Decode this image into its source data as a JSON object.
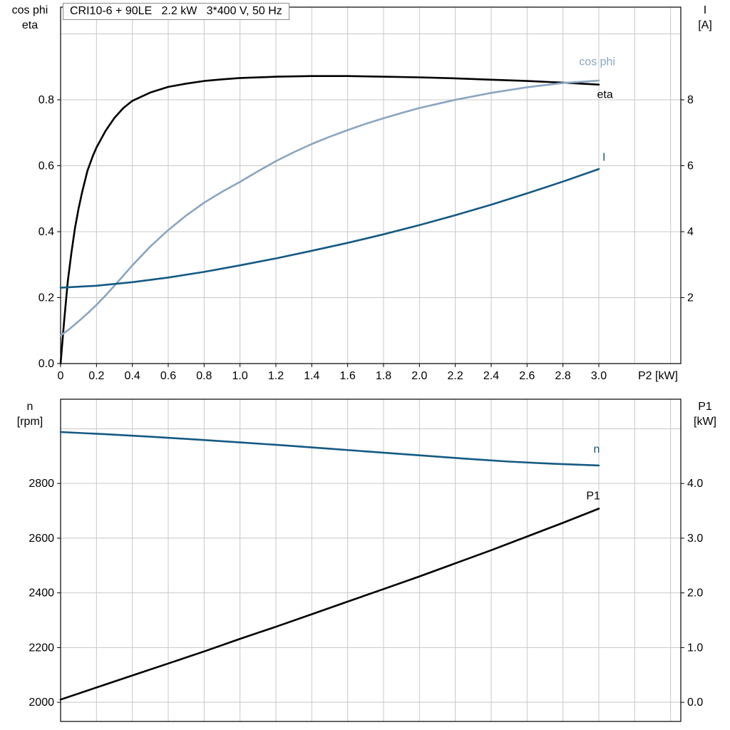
{
  "page": {
    "background": "#ffffff"
  },
  "colors": {
    "black": "#000000",
    "dark_blue": "#145A83",
    "light_blue": "#8AA5C0",
    "grid": "#C8C8C8"
  },
  "title_box": {
    "text": "CRI10-6 + 90LE   2.2 kW   3*400 V, 50 Hz"
  },
  "chart_data": [
    {
      "id": "motor-efficiency-chart",
      "type": "line",
      "title": "CRI10-6 + 90LE   2.2 kW   3*400 V, 50 Hz",
      "x": {
        "min": 0,
        "max": 3.457,
        "label": "P2 [kW]",
        "ticks": [
          0,
          0.2,
          0.4,
          0.6,
          0.8,
          1,
          1.2,
          1.4,
          1.6,
          1.8,
          2,
          2.2,
          2.4,
          2.6,
          2.8,
          3
        ],
        "tick_labels": [
          "0",
          "0.2",
          "0.4",
          "0.6",
          "0.8",
          "1.0",
          "1.2",
          "1.4",
          "1.6",
          "1.8",
          "2.0",
          "2.2",
          "2.4",
          "2.6",
          "2.8",
          "3.0"
        ],
        "grid": [
          0.2,
          0.4,
          0.6,
          0.8,
          1,
          1.2,
          1.4,
          1.6,
          1.8,
          2,
          2.2,
          2.4,
          2.6,
          2.8,
          3,
          3.2,
          3.4
        ]
      },
      "y_left": {
        "min": 0,
        "max": 1.081,
        "title_lines": [
          "cos phi",
          "eta"
        ],
        "ticks": [
          0,
          0.2,
          0.4,
          0.6,
          0.8
        ],
        "tick_labels": [
          "0.0",
          "0.2",
          "0.4",
          "0.6",
          "0.8"
        ],
        "grid": [
          0.2,
          0.4,
          0.6,
          0.8,
          1.0
        ]
      },
      "y_right": {
        "min": 0,
        "max": 10.81,
        "title_lines": [
          "I",
          "[A]"
        ],
        "ticks": [
          2,
          4,
          6,
          8
        ],
        "tick_labels": [
          "2",
          "4",
          "6",
          "8"
        ]
      },
      "series": [
        {
          "name": "eta",
          "axis": "left",
          "color": "#000000",
          "points": [
            [
              0,
              0
            ],
            [
              0.02,
              0.13
            ],
            [
              0.04,
              0.25
            ],
            [
              0.06,
              0.335
            ],
            [
              0.08,
              0.41
            ],
            [
              0.1,
              0.47
            ],
            [
              0.12,
              0.52
            ],
            [
              0.15,
              0.585
            ],
            [
              0.18,
              0.63
            ],
            [
              0.2,
              0.655
            ],
            [
              0.25,
              0.705
            ],
            [
              0.3,
              0.745
            ],
            [
              0.35,
              0.775
            ],
            [
              0.4,
              0.797
            ],
            [
              0.5,
              0.822
            ],
            [
              0.6,
              0.839
            ],
            [
              0.7,
              0.849
            ],
            [
              0.8,
              0.857
            ],
            [
              0.9,
              0.862
            ],
            [
              1,
              0.866
            ],
            [
              1.2,
              0.87
            ],
            [
              1.4,
              0.872
            ],
            [
              1.6,
              0.872
            ],
            [
              1.8,
              0.87
            ],
            [
              2,
              0.868
            ],
            [
              2.2,
              0.865
            ],
            [
              2.4,
              0.861
            ],
            [
              2.6,
              0.857
            ],
            [
              2.8,
              0.852
            ],
            [
              3,
              0.846
            ]
          ]
        },
        {
          "name": "cos-phi",
          "axis": "left",
          "color": "#8AA5C0",
          "points": [
            [
              0,
              0.085
            ],
            [
              0.05,
              0.105
            ],
            [
              0.1,
              0.128
            ],
            [
              0.15,
              0.152
            ],
            [
              0.2,
              0.178
            ],
            [
              0.25,
              0.206
            ],
            [
              0.3,
              0.236
            ],
            [
              0.35,
              0.267
            ],
            [
              0.4,
              0.298
            ],
            [
              0.5,
              0.355
            ],
            [
              0.6,
              0.405
            ],
            [
              0.7,
              0.449
            ],
            [
              0.8,
              0.488
            ],
            [
              0.9,
              0.521
            ],
            [
              1,
              0.551
            ],
            [
              1.1,
              0.583
            ],
            [
              1.2,
              0.614
            ],
            [
              1.3,
              0.641
            ],
            [
              1.4,
              0.666
            ],
            [
              1.5,
              0.688
            ],
            [
              1.6,
              0.708
            ],
            [
              1.7,
              0.727
            ],
            [
              1.8,
              0.744
            ],
            [
              1.9,
              0.76
            ],
            [
              2,
              0.775
            ],
            [
              2.2,
              0.8
            ],
            [
              2.4,
              0.821
            ],
            [
              2.6,
              0.838
            ],
            [
              2.8,
              0.851
            ],
            [
              3,
              0.858
            ]
          ]
        },
        {
          "name": "current-I",
          "axis": "right",
          "color": "#145A83",
          "points": [
            [
              0,
              2.3
            ],
            [
              0.2,
              2.36
            ],
            [
              0.4,
              2.47
            ],
            [
              0.6,
              2.61
            ],
            [
              0.8,
              2.78
            ],
            [
              1,
              2.98
            ],
            [
              1.2,
              3.19
            ],
            [
              1.4,
              3.42
            ],
            [
              1.6,
              3.66
            ],
            [
              1.8,
              3.92
            ],
            [
              2,
              4.2
            ],
            [
              2.2,
              4.5
            ],
            [
              2.4,
              4.82
            ],
            [
              2.6,
              5.16
            ],
            [
              2.8,
              5.52
            ],
            [
              3,
              5.9
            ]
          ]
        }
      ],
      "curve_labels": [
        {
          "name": "cos-phi",
          "text": "cos phi",
          "x": 2.89,
          "y": 0.905,
          "axis": "left",
          "color": "#8AA5C0"
        },
        {
          "name": "eta",
          "text": "eta",
          "x": 2.99,
          "y": 0.805,
          "axis": "left",
          "color": "#000000"
        },
        {
          "name": "current-I",
          "text": "I",
          "x": 3.02,
          "y": 6.15,
          "axis": "right",
          "color": "#145A83"
        }
      ]
    },
    {
      "id": "speed-power-chart",
      "type": "line",
      "title": "",
      "x": {
        "min": 0,
        "max": 3.457,
        "label": "",
        "ticks": [],
        "tick_labels": [],
        "grid": [
          0.2,
          0.4,
          0.6,
          0.8,
          1,
          1.2,
          1.4,
          1.6,
          1.8,
          2,
          2.2,
          2.4,
          2.6,
          2.8,
          3,
          3.2,
          3.4
        ]
      },
      "y_left": {
        "min": 1930,
        "max": 3108,
        "title_lines": [
          "n",
          "[rpm]"
        ],
        "ticks": [
          2000,
          2200,
          2400,
          2600,
          2800
        ],
        "tick_labels": [
          "2000",
          "2200",
          "2400",
          "2600",
          "2800"
        ],
        "grid": [
          2000,
          2200,
          2400,
          2600,
          2800,
          3000
        ]
      },
      "y_right": {
        "min": -0.35,
        "max": 5.54,
        "title_lines": [
          "P1",
          "[kW]"
        ],
        "ticks": [
          0,
          1,
          2,
          3,
          4
        ],
        "tick_labels": [
          "0.0",
          "1.0",
          "2.0",
          "3.0",
          "4.0"
        ]
      },
      "series": [
        {
          "name": "n",
          "axis": "left",
          "color": "#145A83",
          "points": [
            [
              0,
              2988
            ],
            [
              0.25,
              2980
            ],
            [
              0.5,
              2971
            ],
            [
              0.75,
              2961
            ],
            [
              1,
              2950
            ],
            [
              1.25,
              2939
            ],
            [
              1.5,
              2927
            ],
            [
              1.75,
              2915
            ],
            [
              2,
              2903
            ],
            [
              2.25,
              2891
            ],
            [
              2.5,
              2880
            ],
            [
              2.75,
              2872
            ],
            [
              3,
              2866
            ]
          ]
        },
        {
          "name": "P1",
          "axis": "right",
          "color": "#000000",
          "points": [
            [
              0,
              0.05
            ],
            [
              0.2,
              0.27
            ],
            [
              0.4,
              0.49
            ],
            [
              0.6,
              0.71
            ],
            [
              0.8,
              0.93
            ],
            [
              1,
              1.16
            ],
            [
              1.2,
              1.38
            ],
            [
              1.4,
              1.61
            ],
            [
              1.6,
              1.84
            ],
            [
              1.8,
              2.07
            ],
            [
              2,
              2.3
            ],
            [
              2.2,
              2.54
            ],
            [
              2.4,
              2.78
            ],
            [
              2.6,
              3.03
            ],
            [
              2.8,
              3.28
            ],
            [
              3,
              3.54
            ]
          ]
        }
      ],
      "curve_labels": [
        {
          "name": "n",
          "text": "n",
          "x": 2.97,
          "y": 2912,
          "axis": "left",
          "color": "#145A83"
        },
        {
          "name": "P1",
          "text": "P1",
          "x": 2.93,
          "y": 3.71,
          "axis": "right",
          "color": "#000000"
        }
      ]
    }
  ]
}
